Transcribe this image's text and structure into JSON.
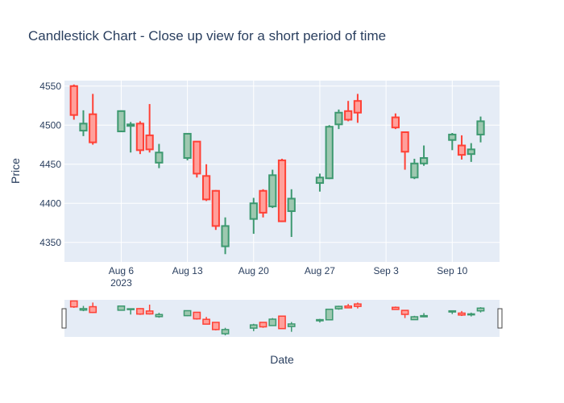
{
  "chart_data": {
    "type": "candlestick",
    "title": "Candlestick Chart - Close up view for a short period of time",
    "xlabel": "Date",
    "ylabel": "Price",
    "ylim": [
      4325,
      4557
    ],
    "xrange": [
      "2023-07-31",
      "2023-09-15"
    ],
    "yticks": [
      4350,
      4400,
      4450,
      4500,
      4550
    ],
    "xticks": [
      {
        "date": "2023-08-06",
        "label": "Aug 6",
        "sublabel": "2023"
      },
      {
        "date": "2023-08-13",
        "label": "Aug 13",
        "sublabel": ""
      },
      {
        "date": "2023-08-20",
        "label": "Aug 20",
        "sublabel": ""
      },
      {
        "date": "2023-08-27",
        "label": "Aug 27",
        "sublabel": ""
      },
      {
        "date": "2023-09-03",
        "label": "Sep 3",
        "sublabel": ""
      },
      {
        "date": "2023-09-10",
        "label": "Sep 10",
        "sublabel": ""
      }
    ],
    "colors": {
      "increasing": "#3d9970",
      "decreasing": "#ff4136",
      "plot_bg": "#e5ecf6",
      "grid": "#ffffff",
      "text": "#2a3f5f"
    },
    "candles": [
      {
        "date": "2023-08-01",
        "open": 4550,
        "high": 4552,
        "low": 4507,
        "close": 4513
      },
      {
        "date": "2023-08-02",
        "open": 4493,
        "high": 4519,
        "low": 4486,
        "close": 4502
      },
      {
        "date": "2023-08-03",
        "open": 4514,
        "high": 4540,
        "low": 4475,
        "close": 4478
      },
      {
        "date": "2023-08-06",
        "open": 4492,
        "high": 4519,
        "low": 4491,
        "close": 4518
      },
      {
        "date": "2023-08-07",
        "open": 4499,
        "high": 4504,
        "low": 4465,
        "close": 4501
      },
      {
        "date": "2023-08-08",
        "open": 4502,
        "high": 4505,
        "low": 4463,
        "close": 4468
      },
      {
        "date": "2023-08-09",
        "open": 4487,
        "high": 4527,
        "low": 4465,
        "close": 4469
      },
      {
        "date": "2023-08-10",
        "open": 4452,
        "high": 4476,
        "low": 4445,
        "close": 4465
      },
      {
        "date": "2023-08-13",
        "open": 4458,
        "high": 4490,
        "low": 4455,
        "close": 4489
      },
      {
        "date": "2023-08-14",
        "open": 4479,
        "high": 4479,
        "low": 4433,
        "close": 4438
      },
      {
        "date": "2023-08-15",
        "open": 4435,
        "high": 4450,
        "low": 4403,
        "close": 4405
      },
      {
        "date": "2023-08-16",
        "open": 4416,
        "high": 4417,
        "low": 4366,
        "close": 4371
      },
      {
        "date": "2023-08-17",
        "open": 4345,
        "high": 4382,
        "low": 4335,
        "close": 4371
      },
      {
        "date": "2023-08-20",
        "open": 4380,
        "high": 4407,
        "low": 4361,
        "close": 4400
      },
      {
        "date": "2023-08-21",
        "open": 4416,
        "high": 4418,
        "low": 4382,
        "close": 4388
      },
      {
        "date": "2023-08-22",
        "open": 4396,
        "high": 4443,
        "low": 4394,
        "close": 4436
      },
      {
        "date": "2023-08-23",
        "open": 4455,
        "high": 4457,
        "low": 4376,
        "close": 4377
      },
      {
        "date": "2023-08-24",
        "open": 4390,
        "high": 4418,
        "low": 4357,
        "close": 4406
      },
      {
        "date": "2023-08-27",
        "open": 4426,
        "high": 4438,
        "low": 4415,
        "close": 4433
      },
      {
        "date": "2023-08-28",
        "open": 4432,
        "high": 4500,
        "low": 4431,
        "close": 4498
      },
      {
        "date": "2023-08-29",
        "open": 4501,
        "high": 4520,
        "low": 4495,
        "close": 4516
      },
      {
        "date": "2023-08-30",
        "open": 4518,
        "high": 4531,
        "low": 4505,
        "close": 4507
      },
      {
        "date": "2023-08-31",
        "open": 4531,
        "high": 4540,
        "low": 4503,
        "close": 4516
      },
      {
        "date": "2023-09-04",
        "open": 4510,
        "high": 4515,
        "low": 4495,
        "close": 4497
      },
      {
        "date": "2023-09-05",
        "open": 4491,
        "high": 4492,
        "low": 4443,
        "close": 4466
      },
      {
        "date": "2023-09-06",
        "open": 4433,
        "high": 4457,
        "low": 4431,
        "close": 4451
      },
      {
        "date": "2023-09-07",
        "open": 4451,
        "high": 4474,
        "low": 4448,
        "close": 4458
      },
      {
        "date": "2023-09-10",
        "open": 4481,
        "high": 4490,
        "low": 4468,
        "close": 4488
      },
      {
        "date": "2023-09-11",
        "open": 4474,
        "high": 4487,
        "low": 4456,
        "close": 4462
      },
      {
        "date": "2023-09-12",
        "open": 4463,
        "high": 4477,
        "low": 4453,
        "close": 4469
      },
      {
        "date": "2023-09-13",
        "open": 4488,
        "high": 4511,
        "low": 4478,
        "close": 4505
      }
    ]
  }
}
